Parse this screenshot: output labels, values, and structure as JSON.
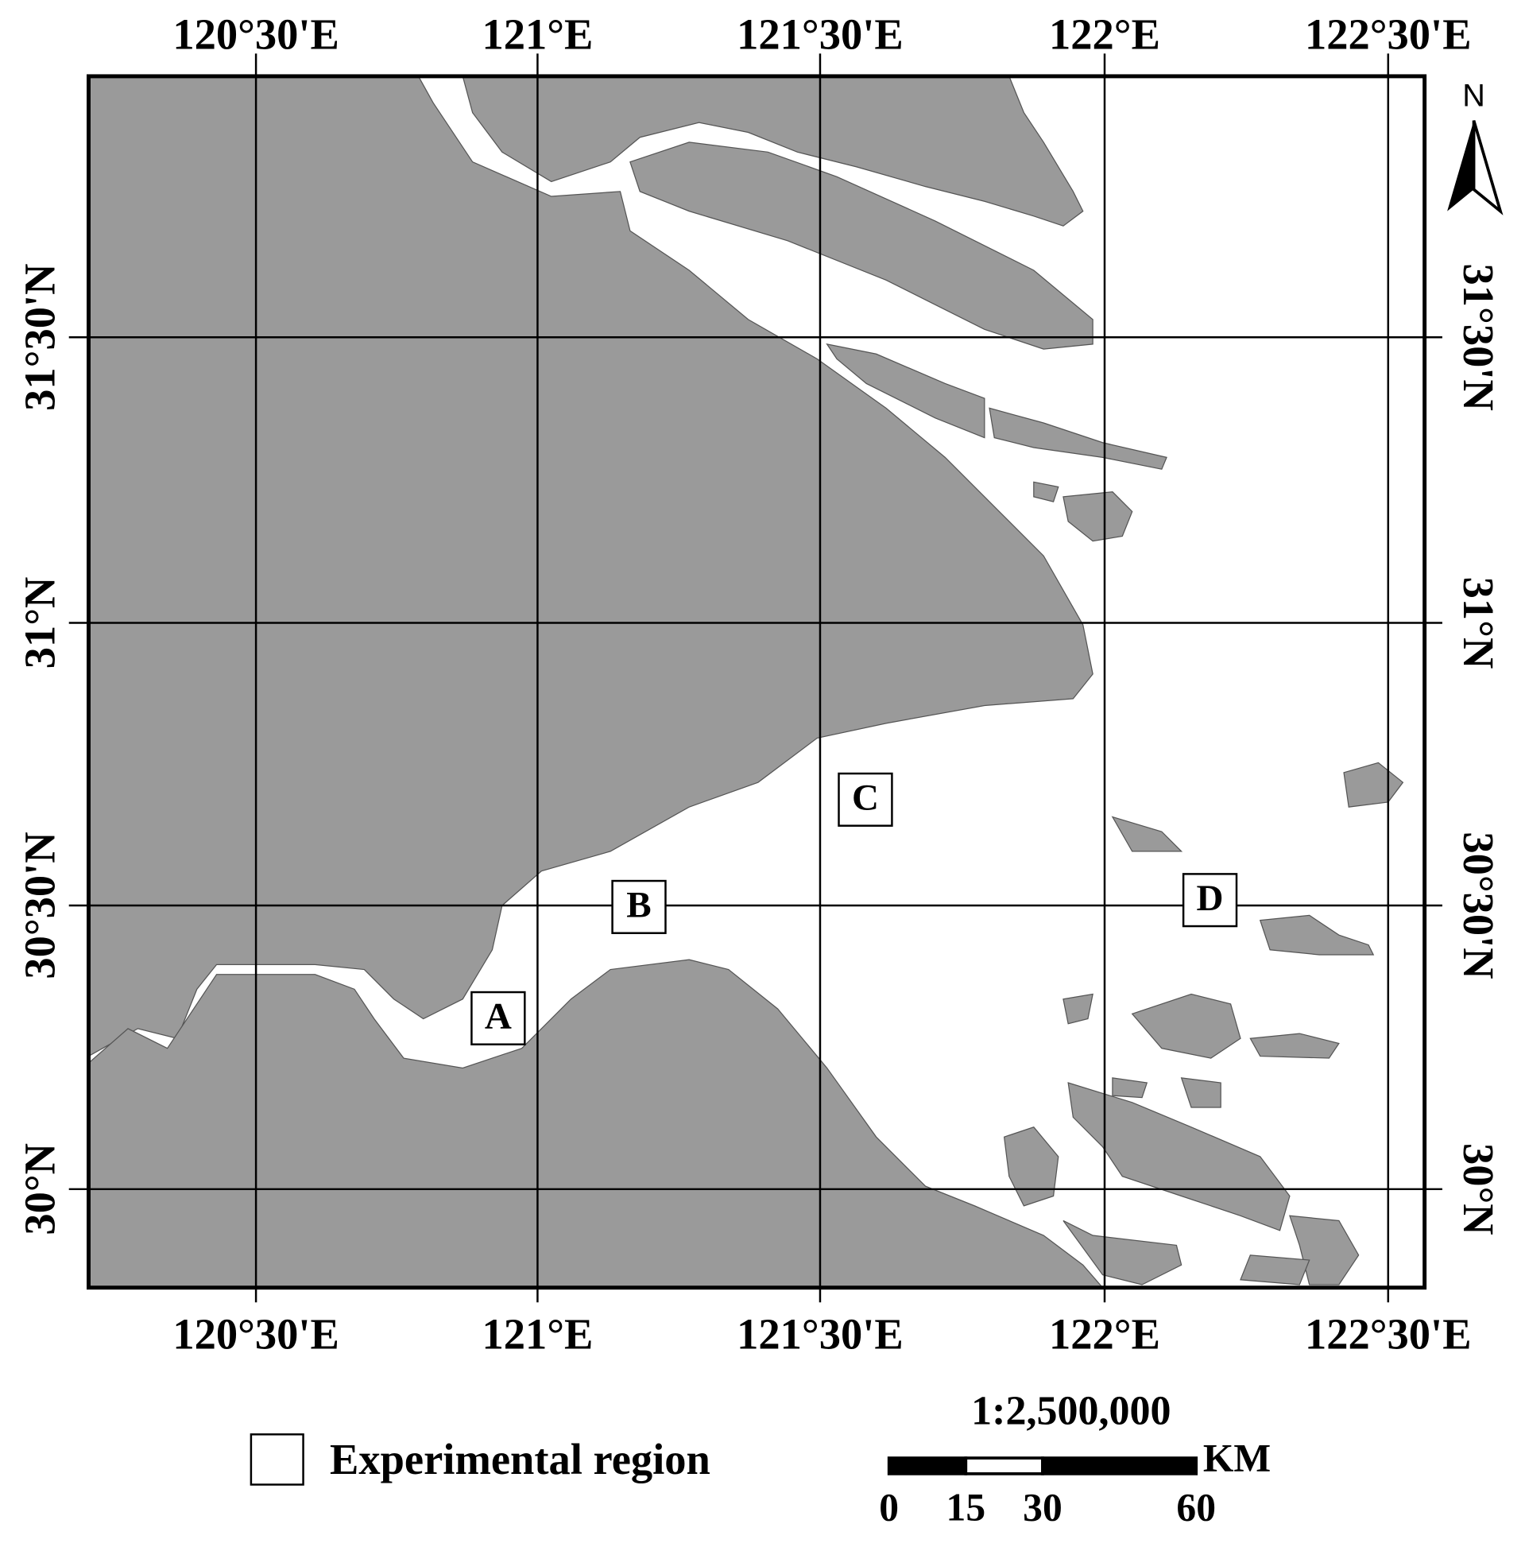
{
  "map": {
    "lon_labels": [
      "120°30'E",
      "121°E",
      "121°30'E",
      "122°E",
      "122°30'E"
    ],
    "lat_labels": [
      "31°30'N",
      "31°N",
      "30°30'N",
      "30°N"
    ],
    "regions": [
      "A",
      "B",
      "C",
      "D"
    ],
    "north": "N"
  },
  "legend": {
    "label": "Experimental region"
  },
  "scale_bar": {
    "ratio": "1:2,500,000",
    "unit": "KM",
    "ticks": [
      0,
      15,
      30,
      60
    ]
  }
}
